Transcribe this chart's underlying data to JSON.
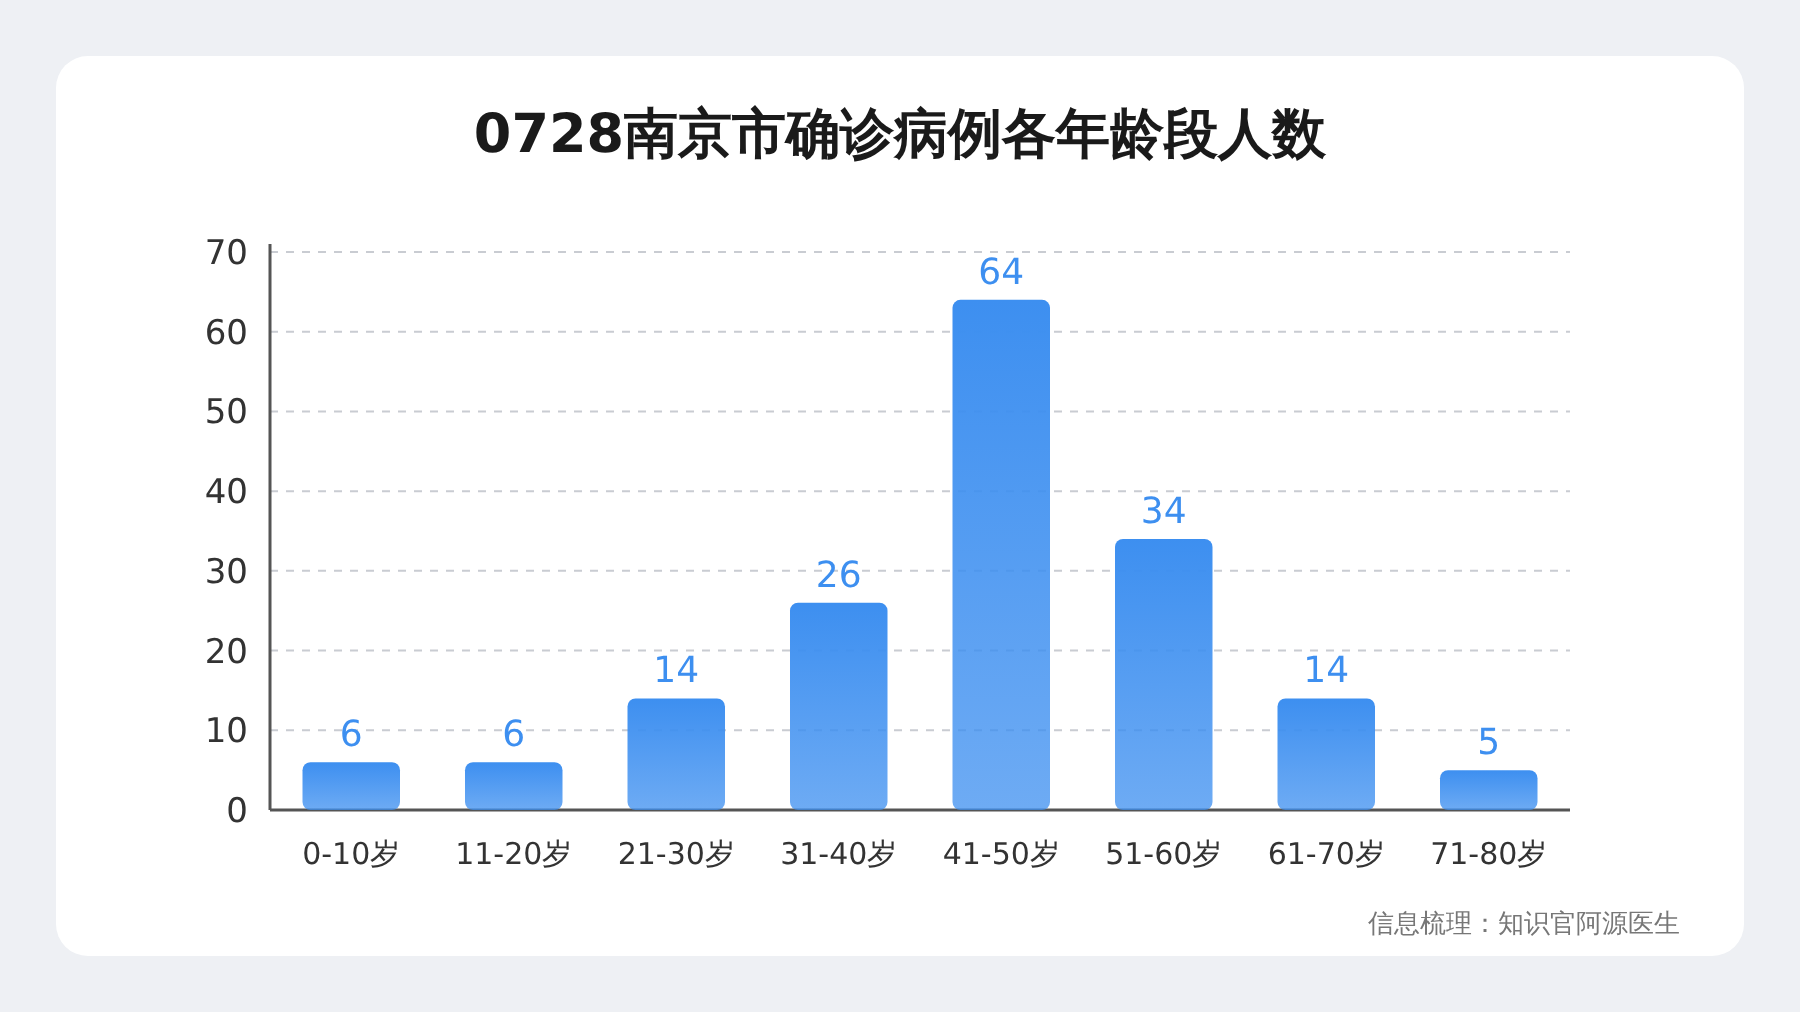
{
  "chart_data": {
    "type": "bar",
    "title": "0728南京市确诊病例各年龄段人数",
    "categories": [
      "0-10岁",
      "11-20岁",
      "21-30岁",
      "31-40岁",
      "41-50岁",
      "51-60岁",
      "61-70岁",
      "71-80岁"
    ],
    "values": [
      6,
      6,
      14,
      26,
      64,
      34,
      14,
      5
    ],
    "color": "#3d8ff0",
    "ylim": [
      0,
      70
    ],
    "yticks": [
      0,
      10,
      20,
      30,
      40,
      50,
      60,
      70
    ],
    "grid": "y",
    "data_labels": true,
    "annotations": [
      "信息梳理：知识官阿源医生"
    ]
  }
}
